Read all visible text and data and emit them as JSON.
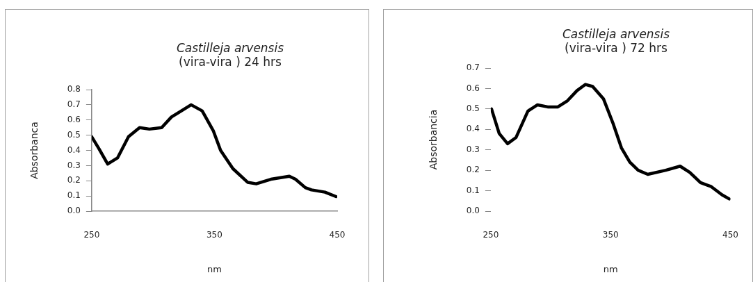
{
  "chart_data": [
    {
      "type": "line",
      "title": "Castilleja arvensis\n(vira-vira ) 24 hrs",
      "xlabel": "nm",
      "ylabel": "Absorbanca",
      "marker": "none",
      "grid": false,
      "legend": false,
      "xlim": [
        250,
        450
      ],
      "xticks": [
        250,
        350,
        450
      ],
      "ylim": [
        0,
        0.8
      ],
      "yticks": [
        {
          "value": 0,
          "label": "0.0"
        },
        0.1,
        0.2,
        0.3,
        0.4,
        0.5,
        0.6,
        0.7,
        0.8
      ],
      "series": [
        {
          "color": "#000000",
          "x": [
            250,
            256,
            263,
            271,
            280,
            289,
            297,
            307,
            315,
            331,
            340,
            349,
            355,
            365,
            377,
            384,
            396,
            411,
            416,
            424,
            429,
            440,
            449
          ],
          "values": [
            0.49,
            0.41,
            0.31,
            0.35,
            0.49,
            0.55,
            0.54,
            0.55,
            0.62,
            0.7,
            0.66,
            0.53,
            0.4,
            0.28,
            0.19,
            0.18,
            0.21,
            0.23,
            0.21,
            0.155,
            0.14,
            0.125,
            0.096
          ]
        }
      ]
    },
    {
      "type": "line",
      "title": "Castilleja arvensis\n(vira-vira ) 72 hrs",
      "xlabel": "nm",
      "ylabel": "Absorbancia",
      "marker": "none",
      "grid": false,
      "legend": false,
      "xlim": [
        250,
        450
      ],
      "xticks": [
        250,
        350,
        450
      ],
      "ylim": [
        0,
        0.7
      ],
      "yticks": [
        {
          "value": 0,
          "label": "0.0"
        },
        0.1,
        0.2,
        0.3,
        0.4,
        0.5,
        0.6,
        0.7
      ],
      "series": [
        {
          "color": "#000000",
          "x": [
            250.6,
            257,
            264,
            271,
            281,
            289,
            297.5,
            306,
            314,
            322,
            329,
            335,
            344,
            352,
            359,
            366,
            373,
            381,
            396,
            408,
            416,
            425,
            434,
            443,
            449
          ],
          "values": [
            0.5,
            0.38,
            0.33,
            0.36,
            0.49,
            0.52,
            0.51,
            0.51,
            0.54,
            0.59,
            0.62,
            0.61,
            0.55,
            0.43,
            0.31,
            0.24,
            0.2,
            0.18,
            0.2,
            0.22,
            0.19,
            0.14,
            0.12,
            0.08,
            0.06
          ]
        }
      ]
    }
  ]
}
